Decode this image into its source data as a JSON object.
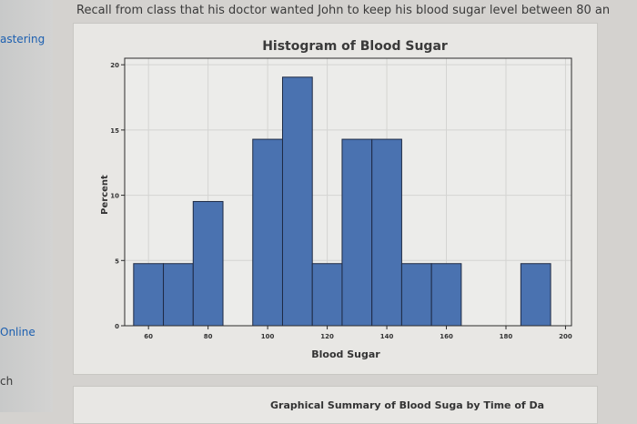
{
  "sidebar": {
    "items": [
      {
        "label": "astering",
        "color": "#1c5fb0"
      },
      {
        "label": "Online",
        "color": "#1c5fb0"
      },
      {
        "label": "ch",
        "color": "#3a3a3a"
      }
    ]
  },
  "question_text": "Recall from class that his doctor wanted John to keep his blood sugar level between 80 an",
  "next_chart_title": "Graphical Summary of Blood Suga by Time of Da",
  "chart_data": {
    "type": "bar",
    "title": "Histogram of Blood Sugar",
    "xlabel": "Blood Sugar",
    "ylabel": "Percent",
    "bin_width": 10,
    "bins": [
      {
        "start": 55,
        "end": 65,
        "value": 4.76
      },
      {
        "start": 65,
        "end": 75,
        "value": 4.76
      },
      {
        "start": 75,
        "end": 85,
        "value": 9.52
      },
      {
        "start": 85,
        "end": 95,
        "value": 0
      },
      {
        "start": 95,
        "end": 105,
        "value": 14.29
      },
      {
        "start": 105,
        "end": 115,
        "value": 19.05
      },
      {
        "start": 115,
        "end": 125,
        "value": 4.76
      },
      {
        "start": 125,
        "end": 135,
        "value": 14.29
      },
      {
        "start": 135,
        "end": 145,
        "value": 14.29
      },
      {
        "start": 145,
        "end": 155,
        "value": 4.76
      },
      {
        "start": 155,
        "end": 165,
        "value": 4.76
      },
      {
        "start": 165,
        "end": 175,
        "value": 0
      },
      {
        "start": 175,
        "end": 185,
        "value": 0
      },
      {
        "start": 185,
        "end": 195,
        "value": 4.76
      }
    ],
    "xticks": [
      60,
      80,
      100,
      120,
      140,
      160,
      180,
      200
    ],
    "yticks": [
      0,
      5,
      10,
      15,
      20
    ],
    "xlim": [
      52,
      202
    ],
    "ylim": [
      0,
      20.5
    ],
    "bar_color": "#4a72b0",
    "bar_edge": "#1e2a44",
    "grid": true
  }
}
